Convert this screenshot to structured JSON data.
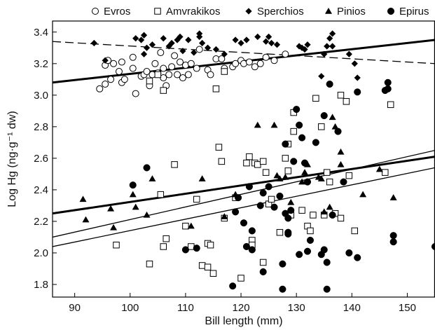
{
  "chart_data": {
    "type": "scatter",
    "xlabel": "Bill length (mm)",
    "ylabel": "Log Hg (ng·g⁻¹ dw)",
    "xlim": [
      86,
      155
    ],
    "ylim": [
      1.72,
      3.47
    ],
    "xticks": [
      90,
      100,
      110,
      120,
      130,
      140,
      150
    ],
    "yticks": [
      1.8,
      2.0,
      2.2,
      2.4,
      2.6,
      2.8,
      3.0,
      3.2,
      3.4
    ],
    "ytick_labels": [
      "1.8",
      "2.0",
      "2.2",
      "2.4",
      "2.6",
      "2.8",
      "3.0",
      "3.2",
      "3.4"
    ],
    "legend_position": "top",
    "series": [
      {
        "name": "Evros",
        "marker": "circle-open",
        "points": [
          [
            94.5,
            3.04
          ],
          [
            95.5,
            3.07
          ],
          [
            95.5,
            3.19
          ],
          [
            96,
            3.22
          ],
          [
            96.5,
            3.1
          ],
          [
            97,
            3.2
          ],
          [
            98,
            3.15
          ],
          [
            98.5,
            3.08
          ],
          [
            98.5,
            3.21
          ],
          [
            99,
            3.1
          ],
          [
            100.5,
            3.24
          ],
          [
            100.5,
            3.17
          ],
          [
            101,
            3.01
          ],
          [
            102,
            3.12
          ],
          [
            102.5,
            3.13
          ],
          [
            103,
            3.15
          ],
          [
            103.5,
            3.06
          ],
          [
            104,
            3.13
          ],
          [
            104.5,
            3.2
          ],
          [
            105,
            3.14
          ],
          [
            105.5,
            3.27
          ],
          [
            106,
            3.17
          ],
          [
            106,
            3.11
          ],
          [
            106.5,
            3.06
          ],
          [
            107,
            3.13
          ],
          [
            107.5,
            3.18
          ],
          [
            108,
            3.25
          ],
          [
            108.5,
            3.13
          ],
          [
            109,
            3.21
          ],
          [
            109.5,
            3.11
          ],
          [
            110,
            3.19
          ],
          [
            110.5,
            3.13
          ],
          [
            111,
            3.2
          ],
          [
            112,
            3.17
          ],
          [
            112.5,
            3.29
          ],
          [
            114,
            3.16
          ],
          [
            114.5,
            3.13
          ],
          [
            115.5,
            3.23
          ],
          [
            116.5,
            3.23
          ],
          [
            117,
            3.17
          ],
          [
            118.5,
            3.18
          ],
          [
            119,
            3.2
          ],
          [
            120,
            3.22
          ],
          [
            120.5,
            3.2
          ],
          [
            121.5,
            3.21
          ],
          [
            122.5,
            3.18
          ],
          [
            123.5,
            3.2
          ],
          [
            124.5,
            3.24
          ],
          [
            126,
            3.22
          ],
          [
            128,
            3.26
          ]
        ]
      },
      {
        "name": "Amvrakikos",
        "marker": "square-open",
        "points": [
          [
            97.5,
            2.05
          ],
          [
            103.5,
            1.93
          ],
          [
            103.5,
            3.09
          ],
          [
            105,
            3.13
          ],
          [
            105.5,
            2.37
          ],
          [
            106,
            3.03
          ],
          [
            106,
            2.04
          ],
          [
            106.5,
            2.09
          ],
          [
            108,
            2.56
          ],
          [
            110,
            2.17
          ],
          [
            111,
            2.04
          ],
          [
            112,
            2.34
          ],
          [
            113,
            1.92
          ],
          [
            114,
            1.91
          ],
          [
            114,
            2.06
          ],
          [
            114.5,
            2.05
          ],
          [
            115,
            1.87
          ],
          [
            115.5,
            3.04
          ],
          [
            116,
            2.67
          ],
          [
            116.5,
            2.58
          ],
          [
            117,
            3.15
          ],
          [
            117,
            2.22
          ],
          [
            119,
            2.35
          ],
          [
            120,
            1.84
          ],
          [
            121,
            2.57
          ],
          [
            121.5,
            2.61
          ],
          [
            122,
            2.08
          ],
          [
            122,
            2.05
          ],
          [
            122.5,
            2.57
          ],
          [
            123,
            2.56
          ],
          [
            124,
            1.94
          ],
          [
            124,
            2.58
          ],
          [
            124.5,
            2.51
          ],
          [
            125,
            2.31
          ],
          [
            125.5,
            2.34
          ],
          [
            127,
            2.13
          ],
          [
            128,
            2.6
          ],
          [
            128.5,
            2.69
          ],
          [
            128.5,
            2.52
          ],
          [
            129,
            2.24
          ],
          [
            129.5,
            2.77
          ],
          [
            129.5,
            2.89
          ],
          [
            131,
            2.27
          ],
          [
            132,
            2.17
          ],
          [
            132.5,
            2.14
          ],
          [
            133,
            2.24
          ],
          [
            133.5,
            2.98
          ],
          [
            134.5,
            2.8
          ],
          [
            135,
            2.24
          ],
          [
            135.5,
            2.51
          ],
          [
            136,
            2.45
          ],
          [
            137,
            2.25
          ],
          [
            138,
            2.22
          ],
          [
            138,
            3.0
          ],
          [
            139,
            2.96
          ],
          [
            139.5,
            2.49
          ],
          [
            140.5,
            2.14
          ],
          [
            146,
            2.51
          ],
          [
            147,
            2.94
          ]
        ]
      },
      {
        "name": "Sperchios",
        "marker": "diamond-filled",
        "points": [
          [
            93.5,
            3.33
          ],
          [
            95.5,
            3.22
          ],
          [
            101,
            3.36
          ],
          [
            102,
            3.35
          ],
          [
            102.5,
            3.38
          ],
          [
            102.5,
            3.26
          ],
          [
            103,
            3.3
          ],
          [
            104,
            3.32
          ],
          [
            106,
            3.36
          ],
          [
            107,
            3.31
          ],
          [
            107.5,
            3.33
          ],
          [
            108.5,
            3.35
          ],
          [
            109,
            3.37
          ],
          [
            109.5,
            3.28
          ],
          [
            110.5,
            3.35
          ],
          [
            111.5,
            3.27
          ],
          [
            112.5,
            3.39
          ],
          [
            112.5,
            3.37
          ],
          [
            113,
            3.33
          ],
          [
            114,
            3.3
          ],
          [
            115.5,
            3.29
          ],
          [
            117,
            3.26
          ],
          [
            119,
            3.35
          ],
          [
            120,
            3.33
          ],
          [
            121,
            3.35
          ],
          [
            123,
            3.37
          ],
          [
            124.5,
            3.34
          ],
          [
            125,
            3.37
          ],
          [
            125.5,
            3.33
          ],
          [
            126.5,
            3.32
          ],
          [
            130.5,
            3.31
          ],
          [
            131,
            3.3
          ],
          [
            131.5,
            3.29
          ],
          [
            132,
            3.32
          ],
          [
            134.5,
            3.12
          ],
          [
            135,
            3.26
          ],
          [
            135.5,
            3.31
          ],
          [
            136,
            3.36
          ],
          [
            136.5,
            3.39
          ],
          [
            136.5,
            3.31
          ],
          [
            139.5,
            3.26
          ],
          [
            140.5,
            3.2
          ],
          [
            141,
            3.11
          ]
        ]
      },
      {
        "name": "Pinios",
        "marker": "triangle-filled",
        "points": [
          [
            91.5,
            2.34
          ],
          [
            92,
            2.21
          ],
          [
            96.5,
            2.28
          ],
          [
            97,
            2.16
          ],
          [
            100.5,
            2.37
          ],
          [
            101,
            2.29
          ],
          [
            103,
            2.24
          ],
          [
            104,
            2.47
          ],
          [
            111,
            2.17
          ],
          [
            113,
            2.47
          ],
          [
            117,
            2.23
          ],
          [
            119,
            2.37
          ],
          [
            123,
            2.81
          ],
          [
            126,
            2.81
          ],
          [
            126.5,
            2.49
          ],
          [
            127,
            2.47
          ],
          [
            128,
            2.48
          ],
          [
            129,
            2.32
          ],
          [
            131,
            2.45
          ],
          [
            131.5,
            2.51
          ],
          [
            132,
            2.56
          ],
          [
            134,
            2.48
          ],
          [
            134.5,
            2.47
          ],
          [
            135,
            2.26
          ],
          [
            136,
            2.29
          ],
          [
            136.5,
            2.86
          ],
          [
            137,
            2.8
          ],
          [
            138,
            2.64
          ],
          [
            138,
            2.56
          ],
          [
            142,
            2.37
          ],
          [
            145,
            2.53
          ],
          [
            147.5,
            2.35
          ]
        ]
      },
      {
        "name": "Epirus",
        "marker": "circle-filled",
        "points": [
          [
            100.5,
            2.43
          ],
          [
            103,
            2.54
          ],
          [
            110,
            2.02
          ],
          [
            112,
            2.03
          ],
          [
            118.5,
            1.79
          ],
          [
            119,
            2.26
          ],
          [
            119.5,
            2.35
          ],
          [
            120.5,
            2.19
          ],
          [
            121,
            2.04
          ],
          [
            121.5,
            2.42
          ],
          [
            122,
            2.14
          ],
          [
            122,
            2.02
          ],
          [
            123.5,
            2.3
          ],
          [
            124,
            1.88
          ],
          [
            124,
            2.38
          ],
          [
            125,
            2.42
          ],
          [
            126,
            2.29
          ],
          [
            127,
            2.36
          ],
          [
            127.5,
            1.77
          ],
          [
            127.5,
            1.93
          ],
          [
            128,
            2.25
          ],
          [
            128,
            2.69
          ],
          [
            128.5,
            2.22
          ],
          [
            128.5,
            2.12
          ],
          [
            128.5,
            2.13
          ],
          [
            129,
            2.27
          ],
          [
            129.5,
            2.58
          ],
          [
            130,
            2.91
          ],
          [
            130.5,
            2.81
          ],
          [
            130.5,
            1.99
          ],
          [
            131,
            2.73
          ],
          [
            131.5,
            2.57
          ],
          [
            132,
            2.01
          ],
          [
            132,
            2.45
          ],
          [
            132.5,
            2.08
          ],
          [
            133.5,
            2.7
          ],
          [
            134.5,
            1.99
          ],
          [
            135,
            2.87
          ],
          [
            135,
            2.02
          ],
          [
            135.5,
            1.94
          ],
          [
            135.5,
            1.77
          ],
          [
            136,
            3.07
          ],
          [
            136.5,
            2.24
          ],
          [
            137.5,
            2.77
          ],
          [
            138.5,
            2.45
          ],
          [
            139.5,
            2.0
          ],
          [
            141,
            3.02
          ],
          [
            141,
            1.97
          ],
          [
            146,
            3.03
          ],
          [
            146.5,
            3.04
          ],
          [
            146.5,
            3.08
          ],
          [
            147.5,
            2.11
          ],
          [
            147.5,
            2.07
          ],
          [
            155,
            2.04
          ]
        ]
      }
    ],
    "regression_lines": [
      {
        "style": "dashed",
        "width": "thin",
        "x": [
          86,
          155
        ],
        "y": [
          3.34,
          3.2
        ]
      },
      {
        "style": "solid",
        "width": "thick",
        "x": [
          86,
          155
        ],
        "y": [
          3.08,
          3.35
        ]
      },
      {
        "style": "solid",
        "width": "thick",
        "x": [
          86,
          155
        ],
        "y": [
          2.25,
          2.61
        ]
      },
      {
        "style": "solid",
        "width": "thin",
        "x": [
          86,
          155
        ],
        "y": [
          2.1,
          2.65
        ]
      },
      {
        "style": "solid",
        "width": "thin",
        "x": [
          86,
          155
        ],
        "y": [
          2.04,
          2.54
        ]
      }
    ]
  }
}
